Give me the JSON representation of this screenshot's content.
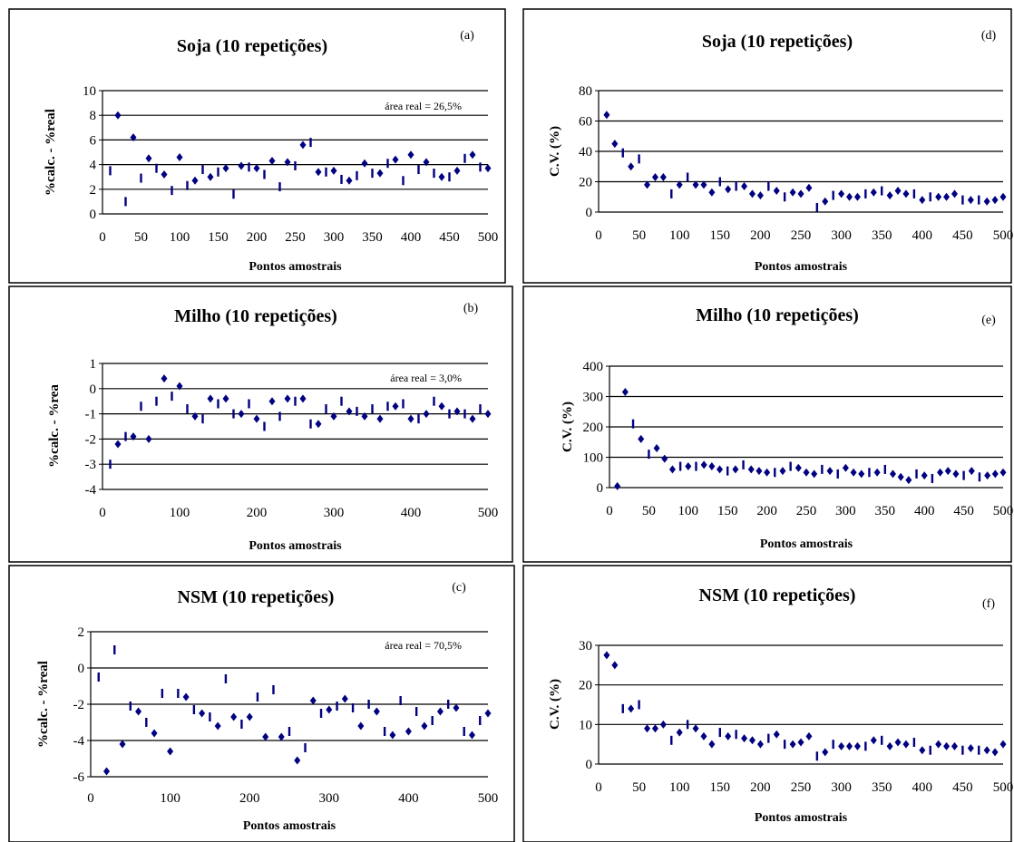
{
  "marker_color": "#000080",
  "charts": [
    {
      "type": "scatter",
      "panel_letter": "(a)",
      "title": "Soja (10 repetições)",
      "xlabel": "Pontos amostrais",
      "ylabel": "%calc. - %real",
      "annotation": "área real = 26,5%",
      "xlim": [
        0,
        500
      ],
      "ylim": [
        0,
        10
      ],
      "xticks": [
        0,
        50,
        100,
        150,
        200,
        250,
        300,
        350,
        400,
        450,
        500
      ],
      "yticks": [
        0,
        2,
        4,
        6,
        8,
        10
      ],
      "x": [
        10,
        20,
        30,
        40,
        50,
        60,
        70,
        80,
        90,
        100,
        110,
        120,
        130,
        140,
        150,
        160,
        170,
        180,
        190,
        200,
        210,
        220,
        230,
        240,
        250,
        260,
        270,
        280,
        290,
        300,
        310,
        320,
        330,
        340,
        350,
        360,
        370,
        380,
        390,
        400,
        410,
        420,
        430,
        440,
        450,
        460,
        470,
        480,
        490,
        500
      ],
      "y": [
        3.5,
        8.0,
        1.0,
        6.2,
        2.9,
        4.5,
        3.7,
        3.2,
        1.9,
        4.6,
        2.3,
        2.7,
        3.6,
        3.0,
        3.4,
        3.7,
        1.6,
        3.9,
        3.8,
        3.7,
        3.2,
        4.3,
        2.2,
        4.2,
        3.9,
        5.6,
        5.8,
        3.4,
        3.4,
        3.5,
        2.8,
        2.7,
        3.1,
        4.1,
        3.3,
        3.3,
        4.1,
        4.4,
        2.7,
        4.8,
        3.6,
        4.2,
        3.3,
        3.0,
        3.0,
        3.5,
        4.5,
        4.8,
        3.8,
        3.7
      ]
    },
    {
      "type": "scatter",
      "panel_letter": "(b)",
      "title": "Milho (10 repetições)",
      "xlabel": "Pontos amostrais",
      "ylabel": "%calc. - %rea",
      "annotation": "área real = 3,0%",
      "xlim": [
        0,
        500
      ],
      "ylim": [
        -4,
        1
      ],
      "xticks": [
        0,
        100,
        200,
        300,
        400,
        500
      ],
      "yticks": [
        -4,
        -3,
        -2,
        -1,
        0,
        1
      ],
      "x": [
        10,
        20,
        30,
        40,
        50,
        60,
        70,
        80,
        90,
        100,
        110,
        120,
        130,
        140,
        150,
        160,
        170,
        180,
        190,
        200,
        210,
        220,
        230,
        240,
        250,
        260,
        270,
        280,
        290,
        300,
        310,
        320,
        330,
        340,
        350,
        360,
        370,
        380,
        390,
        400,
        410,
        420,
        430,
        440,
        450,
        460,
        470,
        480,
        490,
        500
      ],
      "y": [
        -3.0,
        -2.2,
        -1.9,
        -1.9,
        -0.7,
        -2.0,
        -0.5,
        0.4,
        -0.3,
        0.1,
        -0.8,
        -1.1,
        -1.2,
        -0.4,
        -0.6,
        -0.4,
        -1.0,
        -1.0,
        -0.6,
        -1.2,
        -1.5,
        -0.5,
        -1.1,
        -0.4,
        -0.5,
        -0.4,
        -1.4,
        -1.4,
        -0.8,
        -1.1,
        -0.5,
        -0.9,
        -0.9,
        -1.1,
        -0.8,
        -1.2,
        -0.7,
        -0.7,
        -0.6,
        -1.2,
        -1.2,
        -1.0,
        -0.5,
        -0.7,
        -1.0,
        -0.9,
        -1.0,
        -1.2,
        -0.8,
        -1.0
      ]
    },
    {
      "type": "scatter",
      "panel_letter": "(c)",
      "title": "NSM (10 repetições)",
      "xlabel": "Pontos amostrais",
      "ylabel": "%calc. - %real",
      "annotation": "área real = 70,5%",
      "xlim": [
        0,
        500
      ],
      "ylim": [
        -6,
        2
      ],
      "xticks": [
        0,
        100,
        200,
        300,
        400,
        500
      ],
      "yticks": [
        -6,
        -4,
        -2,
        0,
        2
      ],
      "x": [
        10,
        20,
        30,
        40,
        50,
        60,
        70,
        80,
        90,
        100,
        110,
        120,
        130,
        140,
        150,
        160,
        170,
        180,
        190,
        200,
        210,
        220,
        230,
        240,
        250,
        260,
        270,
        280,
        290,
        300,
        310,
        320,
        330,
        340,
        350,
        360,
        370,
        380,
        390,
        400,
        410,
        420,
        430,
        440,
        450,
        460,
        470,
        480,
        490,
        500
      ],
      "y": [
        -0.5,
        -5.7,
        1.0,
        -4.2,
        -2.1,
        -2.4,
        -3.0,
        -3.6,
        -1.4,
        -4.6,
        -1.4,
        -1.6,
        -2.3,
        -2.5,
        -2.7,
        -3.2,
        -0.6,
        -2.7,
        -3.1,
        -2.7,
        -1.6,
        -3.8,
        -1.2,
        -3.8,
        -3.5,
        -5.1,
        -4.4,
        -1.8,
        -2.5,
        -2.3,
        -2.1,
        -1.7,
        -2.2,
        -3.2,
        -2.0,
        -2.4,
        -3.5,
        -3.7,
        -1.8,
        -3.5,
        -2.4,
        -3.2,
        -2.9,
        -2.4,
        -2.0,
        -2.2,
        -3.5,
        -3.7,
        -2.9,
        -2.5
      ]
    },
    {
      "type": "scatter",
      "panel_letter": "(d)",
      "title": "Soja (10 repetições)",
      "xlabel": "Pontos amostrais",
      "ylabel": "C.V. (%)",
      "xlim": [
        0,
        500
      ],
      "ylim": [
        0,
        80
      ],
      "xticks": [
        0,
        50,
        100,
        150,
        200,
        250,
        300,
        350,
        400,
        450,
        500
      ],
      "yticks": [
        0,
        20,
        40,
        60,
        80
      ],
      "x": [
        10,
        20,
        30,
        40,
        50,
        60,
        70,
        80,
        90,
        100,
        110,
        120,
        130,
        140,
        150,
        160,
        170,
        180,
        190,
        200,
        210,
        220,
        230,
        240,
        250,
        260,
        270,
        280,
        290,
        300,
        310,
        320,
        330,
        340,
        350,
        360,
        370,
        380,
        390,
        400,
        410,
        420,
        430,
        440,
        450,
        460,
        470,
        480,
        490,
        500
      ],
      "y": [
        64,
        45,
        39,
        30,
        35,
        18,
        23,
        23,
        12,
        18,
        23,
        18,
        18,
        13,
        20,
        15,
        17,
        17,
        12,
        11,
        17,
        14,
        10,
        13,
        12,
        16,
        3,
        7,
        11,
        12,
        10,
        10,
        12,
        13,
        14,
        11,
        14,
        12,
        12,
        8,
        10,
        10,
        10,
        12,
        8,
        8,
        8,
        7,
        8,
        10
      ]
    },
    {
      "type": "scatter",
      "panel_letter": "(e)",
      "title": "Milho (10 repetições)",
      "xlabel": "Pontos amostrais",
      "ylabel": "C.V. (%)",
      "xlim": [
        0,
        500
      ],
      "ylim": [
        0,
        400
      ],
      "xticks": [
        0,
        50,
        100,
        150,
        200,
        250,
        300,
        350,
        400,
        450,
        500
      ],
      "yticks": [
        0,
        100,
        200,
        300,
        400
      ],
      "x": [
        10,
        20,
        30,
        40,
        50,
        60,
        70,
        80,
        90,
        100,
        110,
        120,
        130,
        140,
        150,
        160,
        170,
        180,
        190,
        200,
        210,
        220,
        230,
        240,
        250,
        260,
        270,
        280,
        290,
        300,
        310,
        320,
        330,
        340,
        350,
        360,
        370,
        380,
        390,
        400,
        410,
        420,
        430,
        440,
        450,
        460,
        470,
        480,
        490,
        500
      ],
      "y": [
        5,
        315,
        210,
        160,
        110,
        130,
        95,
        60,
        70,
        70,
        70,
        75,
        70,
        60,
        55,
        60,
        75,
        60,
        55,
        50,
        50,
        55,
        70,
        65,
        50,
        45,
        60,
        55,
        45,
        65,
        50,
        45,
        50,
        50,
        60,
        45,
        35,
        25,
        45,
        40,
        30,
        50,
        55,
        45,
        40,
        55,
        35,
        40,
        45,
        50
      ]
    },
    {
      "type": "scatter",
      "panel_letter": "(f)",
      "title": "NSM (10 repetições)",
      "xlabel": "Pontos amostrais",
      "ylabel": "C.V. (%)",
      "xlim": [
        0,
        500
      ],
      "ylim": [
        0,
        30
      ],
      "xticks": [
        0,
        50,
        100,
        150,
        200,
        250,
        300,
        350,
        400,
        450,
        500
      ],
      "yticks": [
        0,
        10,
        20,
        30
      ],
      "x": [
        10,
        20,
        30,
        40,
        50,
        60,
        70,
        80,
        90,
        100,
        110,
        120,
        130,
        140,
        150,
        160,
        170,
        180,
        190,
        200,
        210,
        220,
        230,
        240,
        250,
        260,
        270,
        280,
        290,
        300,
        310,
        320,
        330,
        340,
        350,
        360,
        370,
        380,
        390,
        400,
        410,
        420,
        430,
        440,
        450,
        460,
        470,
        480,
        490,
        500
      ],
      "y": [
        27.5,
        25,
        14,
        14,
        15,
        9,
        9,
        10,
        6,
        8,
        10,
        9,
        7,
        5,
        8,
        7,
        7.5,
        6.5,
        6,
        5,
        6.5,
        7.5,
        5,
        5,
        5.5,
        7,
        2,
        3,
        5,
        4.5,
        4.5,
        4.5,
        4.5,
        6,
        6,
        4.5,
        5.5,
        5,
        5.5,
        3.5,
        3.5,
        5,
        4.5,
        4.5,
        3.5,
        4,
        3.5,
        3.5,
        3,
        5
      ]
    }
  ]
}
